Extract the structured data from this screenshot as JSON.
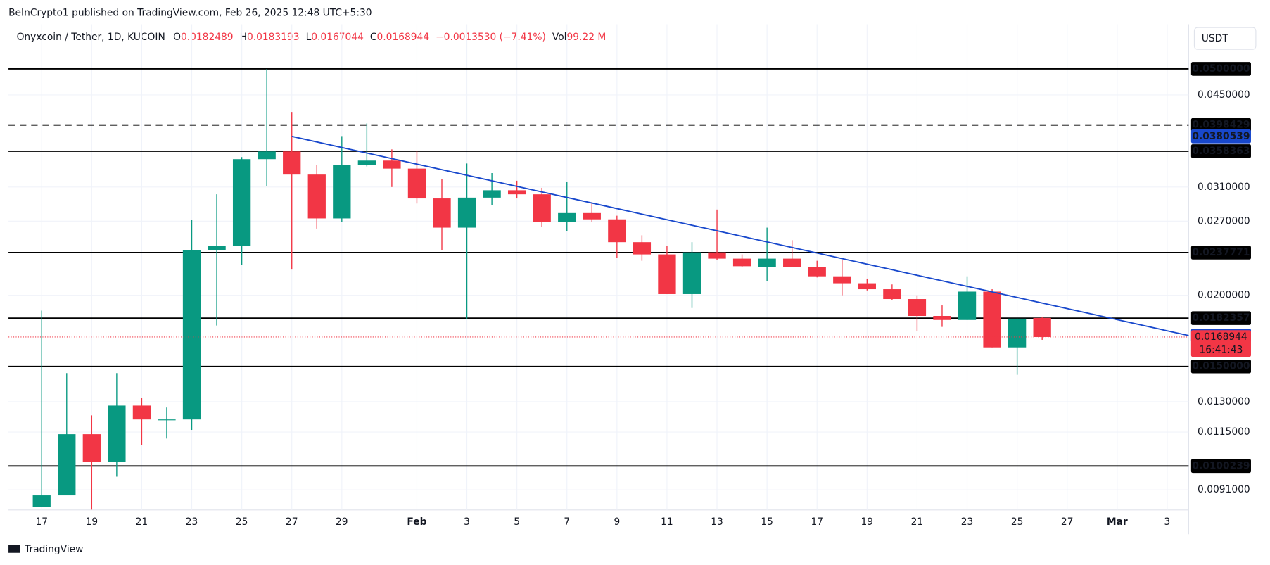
{
  "header": {
    "published": "BeInCrypto1 published on TradingView.com, Feb 26, 2025 12:48 UTC+5:30",
    "symbol": "Onyxcoin / Tether, 1D, KUCOIN",
    "field_labels": [
      "O",
      "H",
      "L",
      "C"
    ],
    "change": "−0.0013530 (−7.41%)",
    "volume_label": "Vol",
    "volume": "99.22 M",
    "currency": "USDT",
    "brand": "TradingView"
  },
  "chart_data": {
    "type": "candlestick",
    "categories": [
      "17",
      null,
      "19",
      null,
      "21",
      null,
      "23",
      null,
      "25",
      null,
      "27",
      null,
      "29",
      null,
      null,
      "Feb",
      null,
      "3",
      null,
      "5",
      null,
      "7",
      null,
      "9",
      null,
      "11",
      null,
      "13",
      null,
      "15",
      null,
      "17",
      null,
      "19",
      null,
      "21",
      null,
      "23",
      null,
      "25",
      null,
      "27",
      null,
      "Mar",
      null,
      "3"
    ],
    "open": [
      0.0085,
      0.0089,
      0.0114,
      0.0102,
      0.0128,
      0.0121,
      0.0121,
      0.024,
      0.0244,
      0.0347,
      0.0358,
      0.0326,
      0.0273,
      0.0339,
      0.0345,
      0.0334,
      0.0296,
      0.0263,
      0.0297,
      0.0306,
      0.0301,
      0.0269,
      0.0279,
      0.0272,
      0.0248,
      0.0236,
      0.0201,
      0.0238,
      0.0232,
      0.0224,
      0.0232,
      0.0224,
      0.0216,
      0.021,
      0.0205,
      0.0197,
      0.0184,
      0.0181,
      0.0203,
      0.0162,
      0.0182489,
      null,
      null,
      null,
      null,
      null
    ],
    "high": [
      0.0188,
      0.0146,
      0.0123,
      0.0146,
      0.0132,
      0.0127,
      0.0271,
      0.0301,
      0.035,
      0.05,
      0.042,
      0.0339,
      0.0381,
      0.0401,
      0.0361,
      0.0359,
      0.032,
      0.0341,
      0.0328,
      0.0318,
      0.0309,
      0.0317,
      0.0291,
      0.0276,
      0.0255,
      0.0244,
      0.0248,
      0.0283,
      0.0236,
      0.0263,
      0.025,
      0.023,
      0.0231,
      0.0214,
      0.0209,
      0.02,
      0.0192,
      0.0216,
      0.0205,
      0.0182,
      0.0183193,
      null,
      null,
      null,
      null,
      null
    ],
    "low": [
      0.0085,
      0.0089,
      0.0084,
      0.0096,
      0.0109,
      0.0112,
      0.0116,
      0.0177,
      0.0226,
      0.0311,
      0.0222,
      0.0262,
      0.0269,
      0.0337,
      0.031,
      0.029,
      0.024,
      0.0182,
      0.0288,
      0.0296,
      0.0264,
      0.0259,
      0.0269,
      0.0233,
      0.023,
      0.0201,
      0.019,
      0.0231,
      0.0224,
      0.0212,
      0.0224,
      0.0215,
      0.02,
      0.0204,
      0.0196,
      0.0173,
      0.0176,
      0.0181,
      0.0162,
      0.0145,
      0.0167044,
      null,
      null,
      null,
      null,
      null
    ],
    "close": [
      0.0089,
      0.0114,
      0.0102,
      0.0128,
      0.0121,
      0.0121,
      0.024,
      0.0244,
      0.0347,
      0.0358,
      0.0326,
      0.0273,
      0.0339,
      0.0345,
      0.0334,
      0.0296,
      0.0263,
      0.0297,
      0.0306,
      0.0301,
      0.0269,
      0.0279,
      0.0272,
      0.0248,
      0.0236,
      0.0201,
      0.0238,
      0.0232,
      0.0225,
      0.0232,
      0.0224,
      0.0216,
      0.021,
      0.0205,
      0.0197,
      0.0184,
      0.0181,
      0.0203,
      0.0162,
      0.0182,
      0.0168944,
      null,
      null,
      null,
      null,
      null
    ],
    "up_color": "#089981",
    "down_color": "#f23645",
    "ylim": [
      0.00839,
      0.0599
    ],
    "log_scale": true,
    "grid": true,
    "yticks": [
      {
        "value": 0.045,
        "label": "0.0450000"
      },
      {
        "value": 0.031,
        "label": "0.0310000"
      },
      {
        "value": 0.027,
        "label": "0.0270000"
      },
      {
        "value": 0.02,
        "label": "0.0200000"
      },
      {
        "value": 0.013,
        "label": "0.0130000"
      },
      {
        "value": 0.0115,
        "label": "0.0115000"
      },
      {
        "value": 0.0091,
        "label": "0.0091000"
      }
    ],
    "levels": [
      {
        "value": 0.05,
        "label": "0.0500000"
      },
      0.0358363,
      0.0237771,
      0.0182357,
      {
        "value": 0.015,
        "label": "0.0150000"
      },
      0.0100239
    ],
    "dashed_levels": [
      0.0398429
    ],
    "trendline": {
      "color": "#1848cc",
      "values": [
        0.0380539,
        0.0169942
      ]
    },
    "countdown": "16:41:43"
  }
}
